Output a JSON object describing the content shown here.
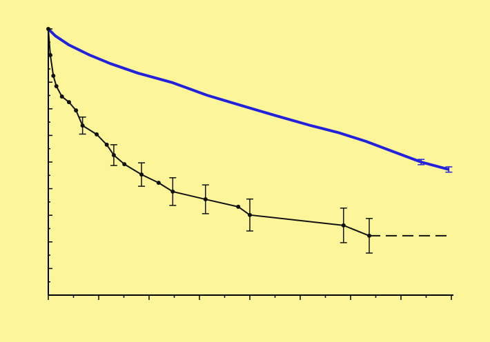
{
  "chart_data": {
    "type": "line",
    "xlim": [
      0,
      8
    ],
    "ylim": [
      0,
      100
    ],
    "xticks": [
      0,
      0.5,
      1,
      1.5,
      2,
      2.5,
      3,
      3.5,
      4,
      4.5,
      5,
      5.5,
      6,
      6.5,
      7,
      7.5,
      8
    ],
    "yticks": [
      0,
      5,
      10,
      15,
      20,
      25,
      30,
      35,
      40,
      45,
      50,
      55,
      60,
      65,
      70,
      75,
      80,
      85,
      90,
      95,
      100
    ],
    "background": "#fdf59a",
    "series": [
      {
        "color": "#2222dd",
        "style": "solid",
        "markers": false,
        "x": [
          0,
          0.14,
          0.41,
          0.82,
          1.23,
          1.78,
          2.47,
          3.15,
          3.84,
          4.52,
          5.21,
          5.75,
          6.3,
          6.85,
          7.4,
          7.95
        ],
        "values": [
          100,
          97.4,
          94.0,
          90.2,
          87.0,
          83.4,
          79.8,
          75.1,
          71.2,
          67.4,
          63.7,
          61.1,
          57.8,
          53.9,
          50.0,
          47.2
        ],
        "errors": [
          null,
          null,
          null,
          null,
          null,
          null,
          null,
          null,
          null,
          null,
          null,
          null,
          null,
          null,
          1.0,
          1.0
        ]
      },
      {
        "color": "#111111",
        "style": "solid",
        "markers": true,
        "x": [
          0,
          0.04,
          0.1,
          0.16,
          0.27,
          0.41,
          0.55,
          0.68,
          0.96,
          1.16,
          1.3,
          1.51,
          1.85,
          2.19,
          2.47,
          3.12,
          3.77,
          4.0,
          5.86,
          6.37
        ],
        "values": [
          100,
          90.2,
          82.4,
          78.5,
          74.6,
          72.5,
          69.4,
          63.7,
          60.4,
          56.5,
          52.6,
          49.2,
          45.3,
          42.2,
          38.9,
          36.0,
          33.2,
          30.1,
          26.2,
          22.3
        ],
        "errors": [
          null,
          null,
          null,
          null,
          null,
          null,
          null,
          3.2,
          null,
          null,
          3.9,
          null,
          4.4,
          null,
          5.2,
          5.4,
          null,
          6.0,
          6.5,
          6.5
        ]
      },
      {
        "color": "#111111",
        "style": "dashed",
        "markers": false,
        "x": [
          6.37,
          8.0
        ],
        "values": [
          22.3,
          22.3
        ]
      }
    ]
  }
}
